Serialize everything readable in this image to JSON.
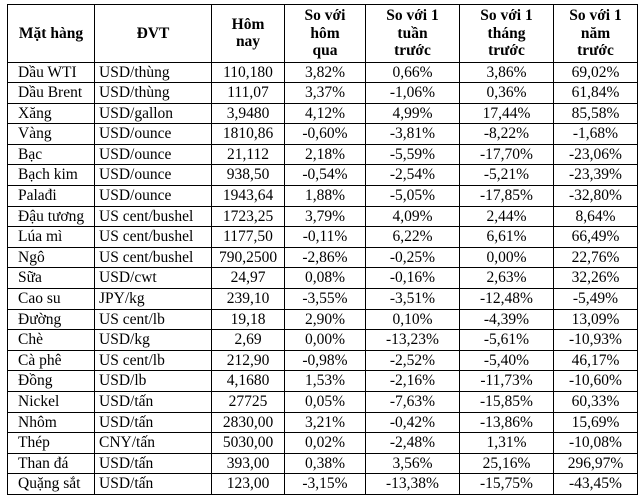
{
  "colors": {
    "border": "#000000",
    "text": "#000000",
    "background": "#ffffff"
  },
  "chart_data": {
    "type": "table",
    "headers": [
      "Mặt hàng",
      "ĐVT",
      "Hôm\nnay",
      "So với\nhôm\nqua",
      "So với 1\ntuần\ntrước",
      "So với 1\ntháng\ntrước",
      "So với 1\nnăm\ntrước"
    ],
    "rows": [
      [
        "Dầu WTI",
        "USD/thùng",
        "110,180",
        "3,82%",
        "0,66%",
        "3,86%",
        "69,02%"
      ],
      [
        "Dầu Brent",
        "USD/thùng",
        "111,07",
        "3,37%",
        "-1,06%",
        "0,36%",
        "61,84%"
      ],
      [
        "Xăng",
        "USD/gallon",
        "3,9480",
        "4,12%",
        "4,99%",
        "17,44%",
        "85,58%"
      ],
      [
        "Vàng",
        "USD/ounce",
        "1810,86",
        "-0,60%",
        "-3,81%",
        "-8,22%",
        "-1,68%"
      ],
      [
        "Bạc",
        "USD/ounce",
        "21,112",
        "2,18%",
        "-5,59%",
        "-17,70%",
        "-23,06%"
      ],
      [
        "Bạch kim",
        "USD/ounce",
        "938,50",
        "-0,54%",
        "-2,54%",
        "-5,21%",
        "-23,39%"
      ],
      [
        "Palađi",
        "USD/ounce",
        "1943,64",
        "1,88%",
        "-5,05%",
        "-17,85%",
        "-32,80%"
      ],
      [
        "Đậu tương",
        "US cent/bushel",
        "1723,25",
        "3,79%",
        "4,09%",
        "2,44%",
        "8,64%"
      ],
      [
        "Lúa mì",
        "US cent/bushel",
        "1177,50",
        "-0,11%",
        "6,22%",
        "6,61%",
        "66,49%"
      ],
      [
        "Ngô",
        "US cent/bushel",
        "790,2500",
        "-2,86%",
        "-0,25%",
        "0,00%",
        "22,76%"
      ],
      [
        "Sữa",
        "USD/cwt",
        "24,97",
        "0,08%",
        "-0,16%",
        "2,63%",
        "32,26%"
      ],
      [
        "Cao su",
        "JPY/kg",
        "239,10",
        "-3,55%",
        "-3,51%",
        "-12,48%",
        "-5,49%"
      ],
      [
        "Đường",
        "US cent/lb",
        "19,18",
        "2,90%",
        "0,10%",
        "-4,39%",
        "13,09%"
      ],
      [
        "Chè",
        "USD/kg",
        "2,69",
        "0,00%",
        "-13,23%",
        "-5,61%",
        "-10,93%"
      ],
      [
        "Cà phê",
        "US cent/lb",
        "212,90",
        "-0,98%",
        "-2,52%",
        "-5,40%",
        "46,17%"
      ],
      [
        "Đồng",
        "USD/lb",
        "4,1680",
        "1,53%",
        "-2,16%",
        "-11,73%",
        "-10,60%"
      ],
      [
        "Nickel",
        "USD/tấn",
        "27725",
        "0,05%",
        "-7,63%",
        "-15,85%",
        "60,33%"
      ],
      [
        "Nhôm",
        "USD/tấn",
        "2830,00",
        "3,21%",
        "-0,42%",
        "-13,86%",
        "15,69%"
      ],
      [
        "Thép",
        "CNY/tấn",
        "5030,00",
        "0,02%",
        "-2,48%",
        "1,31%",
        "-10,08%"
      ],
      [
        "Than đá",
        "USD/tấn",
        "393,00",
        "0,38%",
        "3,56%",
        "25,16%",
        "296,97%"
      ],
      [
        "Quặng sắt",
        "USD/tấn",
        "123,00",
        "-3,15%",
        "-13,38%",
        "-15,75%",
        "-43,45%"
      ]
    ]
  }
}
